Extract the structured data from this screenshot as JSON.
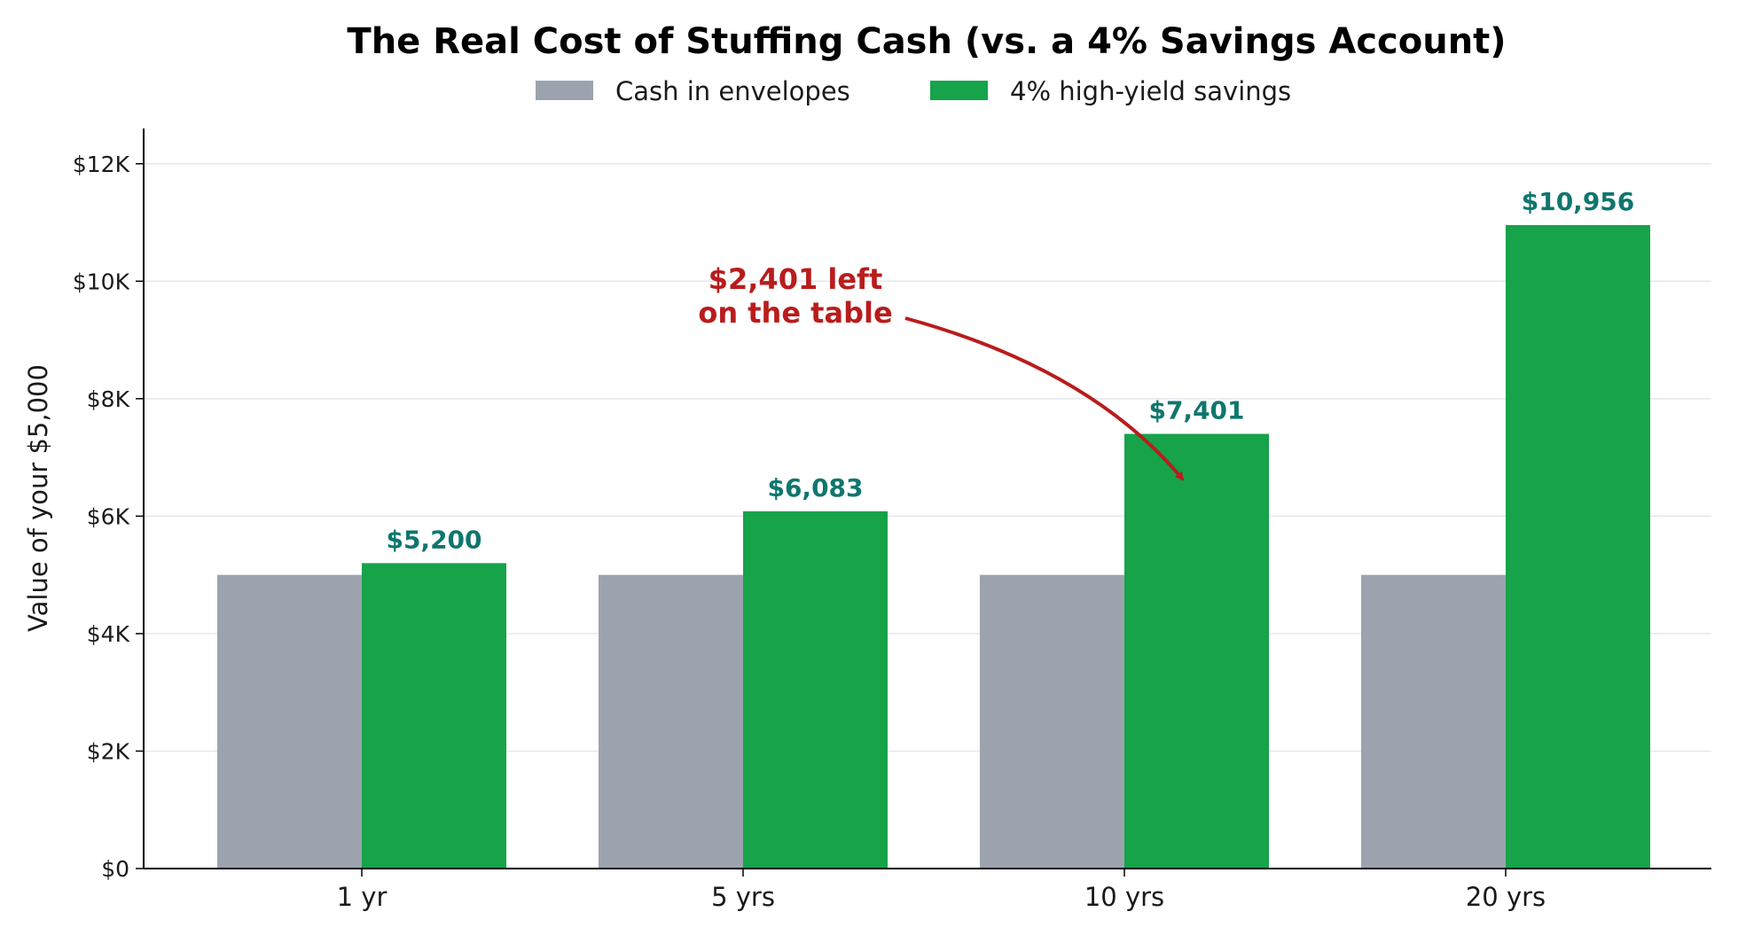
{
  "chart_data": {
    "type": "bar",
    "title": "The Real Cost of Stuffing Cash (vs. a 4% Savings Account)",
    "xlabel": "",
    "ylabel": "Value of your $5,000",
    "categories": [
      "1 yr",
      "5 yrs",
      "10 yrs",
      "20 yrs"
    ],
    "series": [
      {
        "name": "Cash in envelopes",
        "color": "#9ca3af",
        "values": [
          5000,
          5000,
          5000,
          5000
        ]
      },
      {
        "name": "4% high-yield savings",
        "color": "#16a34a",
        "values": [
          5200,
          6083,
          7401,
          10956
        ],
        "labels": [
          "$5,200",
          "$6,083",
          "$7,401",
          "$10,956"
        ]
      }
    ],
    "value_label_color": "#0f766e",
    "ylim": [
      0,
      12600
    ],
    "yticks": [
      0,
      2000,
      4000,
      6000,
      8000,
      10000,
      12000
    ],
    "ytick_labels": [
      "$0",
      "$2K",
      "$4K",
      "$6K",
      "$8K",
      "$10K",
      "$12K"
    ],
    "grid": "horizontal",
    "legend_position": "top-center",
    "annotation": {
      "lines": [
        "$2,401 left",
        "on the table"
      ],
      "color": "#b91c1c",
      "target_category": "10 yrs",
      "target_series": "4% high-yield savings"
    }
  }
}
